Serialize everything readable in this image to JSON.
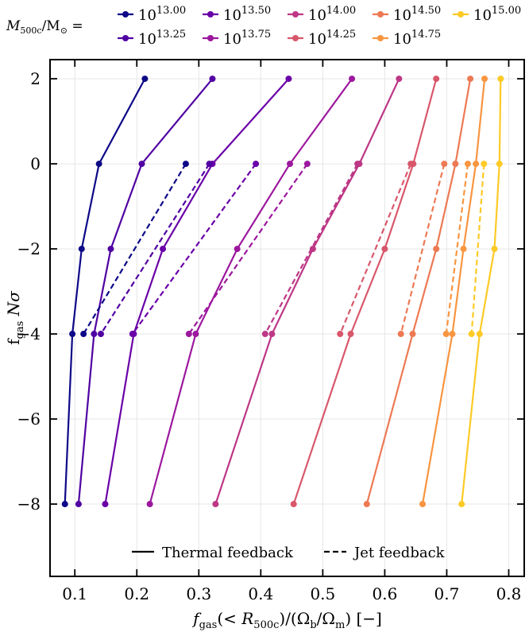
{
  "chart_data": {
    "type": "line",
    "xlabel": "f_gas(< R_500c) / (Ω_b / Ω_m) [−]",
    "ylabel": "f_gas Nσ",
    "xlim": [
      0.06,
      0.825
    ],
    "ylim": [
      -9.7,
      2.45
    ],
    "xticks": [
      0.1,
      0.2,
      0.3,
      0.4,
      0.5,
      0.6,
      0.7,
      0.8
    ],
    "yticks": [
      2,
      0,
      -2,
      -4,
      -6,
      -8
    ],
    "xtick_labels": [
      "0.1",
      "0.2",
      "0.3",
      "0.4",
      "0.5",
      "0.6",
      "0.7",
      "0.8"
    ],
    "ytick_labels": [
      "2",
      "0",
      "−2",
      "−4",
      "−6",
      "−8"
    ],
    "grid": true,
    "mass_legend": {
      "title": "M_500c / M_⊙ =",
      "placement": "top",
      "entries": [
        {
          "base": "10",
          "exp": "13.00"
        },
        {
          "base": "10",
          "exp": "13.25"
        },
        {
          "base": "10",
          "exp": "13.50"
        },
        {
          "base": "10",
          "exp": "13.75"
        },
        {
          "base": "10",
          "exp": "14.00"
        },
        {
          "base": "10",
          "exp": "14.25"
        },
        {
          "base": "10",
          "exp": "14.50"
        },
        {
          "base": "10",
          "exp": "14.75"
        },
        {
          "base": "10",
          "exp": "15.00"
        }
      ]
    },
    "style_legend": {
      "placement": "lower-center",
      "entries": [
        {
          "label": "Thermal feedback",
          "dash": "solid"
        },
        {
          "label": "Jet feedback",
          "dash": "dashed"
        }
      ]
    },
    "series": [
      {
        "name": "10^13.00 thermal",
        "feedback": "thermal",
        "color": "#0d0887",
        "y": [
          2,
          0,
          -2,
          -4,
          -8
        ],
        "x": [
          0.213,
          0.139,
          0.111,
          0.096,
          0.084
        ]
      },
      {
        "name": "10^13.25 thermal",
        "feedback": "thermal",
        "color": "#5002a2",
        "y": [
          2,
          0,
          -2,
          -4,
          -8
        ],
        "x": [
          0.322,
          0.208,
          0.158,
          0.131,
          0.106
        ]
      },
      {
        "name": "10^13.50 thermal",
        "feedback": "thermal",
        "color": "#6a00a8",
        "y": [
          2,
          0,
          -2,
          -4,
          -8
        ],
        "x": [
          0.445,
          0.322,
          0.242,
          0.195,
          0.149
        ]
      },
      {
        "name": "10^13.75 thermal",
        "feedback": "thermal",
        "color": "#9c179e",
        "y": [
          2,
          0,
          -2,
          -4,
          -8
        ],
        "x": [
          0.547,
          0.447,
          0.362,
          0.295,
          0.221
        ]
      },
      {
        "name": "10^14.00 thermal",
        "feedback": "thermal",
        "color": "#bd3786",
        "y": [
          2,
          0,
          -2,
          -4,
          -8
        ],
        "x": [
          0.623,
          0.559,
          0.484,
          0.418,
          0.327
        ]
      },
      {
        "name": "10^14.25 thermal",
        "feedback": "thermal",
        "color": "#d8576b",
        "y": [
          2,
          0,
          -2,
          -4,
          -8
        ],
        "x": [
          0.683,
          0.646,
          0.6,
          0.545,
          0.453
        ]
      },
      {
        "name": "10^14.50 thermal",
        "feedback": "thermal",
        "color": "#ed7953",
        "y": [
          2,
          0,
          -2,
          -4,
          -8
        ],
        "x": [
          0.738,
          0.714,
          0.683,
          0.645,
          0.571
        ]
      },
      {
        "name": "10^14.75 thermal",
        "feedback": "thermal",
        "color": "#f89540",
        "y": [
          2,
          0,
          -2,
          -4,
          -8
        ],
        "x": [
          0.761,
          0.747,
          0.727,
          0.709,
          0.661
        ]
      },
      {
        "name": "10^15.00 thermal",
        "feedback": "thermal",
        "color": "#fdca26",
        "y": [
          2,
          0,
          -2,
          -4,
          -8
        ],
        "x": [
          0.787,
          0.785,
          0.777,
          0.753,
          0.724
        ]
      },
      {
        "name": "10^13.00 jet",
        "feedback": "jet",
        "color": "#0d0887",
        "y": [
          0,
          -4
        ],
        "x": [
          0.279,
          0.114
        ]
      },
      {
        "name": "10^13.25 jet",
        "feedback": "jet",
        "color": "#5002a2",
        "y": [
          0,
          -4
        ],
        "x": [
          0.317,
          0.142
        ]
      },
      {
        "name": "10^13.50 jet",
        "feedback": "jet",
        "color": "#6a00a8",
        "y": [
          0,
          -4
        ],
        "x": [
          0.392,
          0.193
        ]
      },
      {
        "name": "10^13.75 jet",
        "feedback": "jet",
        "color": "#9c179e",
        "y": [
          0,
          -4
        ],
        "x": [
          0.475,
          0.284
        ]
      },
      {
        "name": "10^14.00 jet",
        "feedback": "jet",
        "color": "#bd3786",
        "y": [
          0,
          -4
        ],
        "x": [
          0.556,
          0.407
        ]
      },
      {
        "name": "10^14.25 jet",
        "feedback": "jet",
        "color": "#d8576b",
        "y": [
          0,
          -4
        ],
        "x": [
          0.642,
          0.528
        ]
      },
      {
        "name": "10^14.50 jet",
        "feedback": "jet",
        "color": "#ed7953",
        "y": [
          0,
          -4
        ],
        "x": [
          0.696,
          0.626
        ]
      },
      {
        "name": "10^14.75 jet",
        "feedback": "jet",
        "color": "#f89540",
        "y": [
          0,
          -4
        ],
        "x": [
          0.734,
          0.699
        ]
      },
      {
        "name": "10^15.00 jet",
        "feedback": "jet",
        "color": "#fdca26",
        "y": [
          0,
          -4
        ],
        "x": [
          0.76,
          0.74
        ]
      }
    ]
  }
}
